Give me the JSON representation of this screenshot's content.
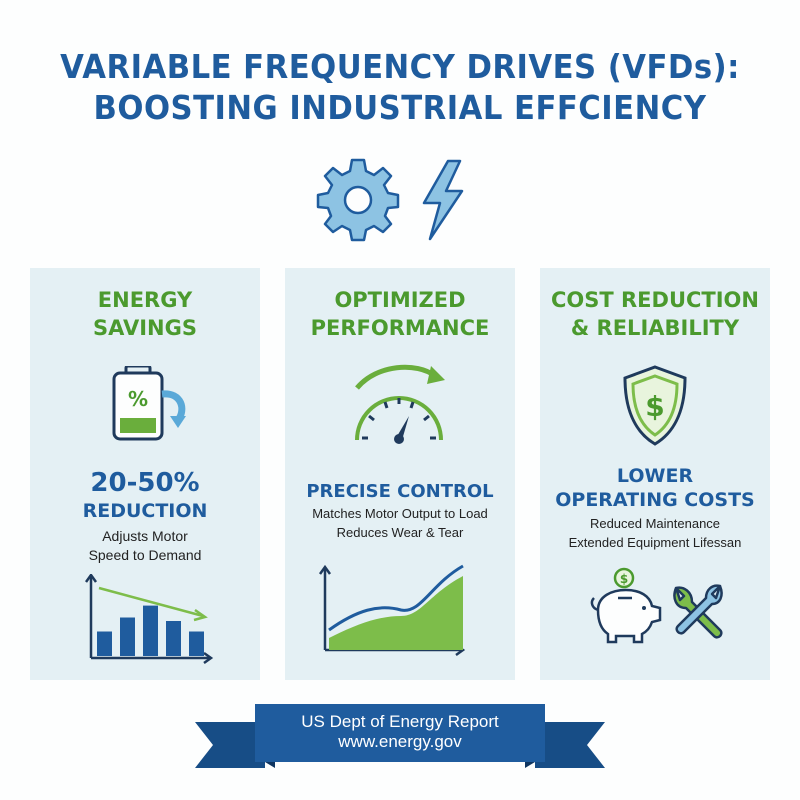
{
  "title": {
    "line1": "VARIABLE FREQUENCY DRIVES (VFDs):",
    "line2": "BOOSTING INDUSTRIAL EFFCIENCY"
  },
  "icons": {
    "hero": [
      "gear-icon",
      "lightning-bolt-icon"
    ],
    "panel1": [
      "battery-percent-icon",
      "bar-chart-trend-icon"
    ],
    "panel2": [
      "speedometer-icon",
      "area-chart-icon"
    ],
    "panel3": [
      "shield-dollar-icon",
      "piggy-bank-icon",
      "wrench-icon"
    ]
  },
  "colors": {
    "title_blue": "#1f5c9e",
    "accent_green": "#4b9a2e",
    "panel_bg": "#e4f0f4",
    "icon_light_blue": "#7fbcde"
  },
  "panels": [
    {
      "title_line1": "ENERGY",
      "title_line2": "SAVINGS",
      "stat_line1": "20-50%",
      "stat_line2": "REDUCTION",
      "desc_line1": "Adjusts Motor",
      "desc_line2": "Speed to Demand"
    },
    {
      "title_line1": "OPTIMIZED",
      "title_line2": "PERFORMANCE",
      "stat_line1": "PRECISE CONTROL",
      "desc_line1": "Matches Motor Output to Load",
      "desc_line2": "Reduces Wear & Tear"
    },
    {
      "title_line1": "COST REDUCTION",
      "title_line2": "& RELIABILITY",
      "stat_line1": "LOWER",
      "stat_line2": "OPERATING COSTS",
      "desc_line1": "Reduced Maintenance",
      "desc_line2": "Extended Equipment Lifessan"
    }
  ],
  "chart_icon_bars": [
    0.35,
    0.55,
    0.72,
    0.5,
    0.35
  ],
  "footer": {
    "line1": "US Dept of Energy Report",
    "line2": "www.energy.gov"
  }
}
